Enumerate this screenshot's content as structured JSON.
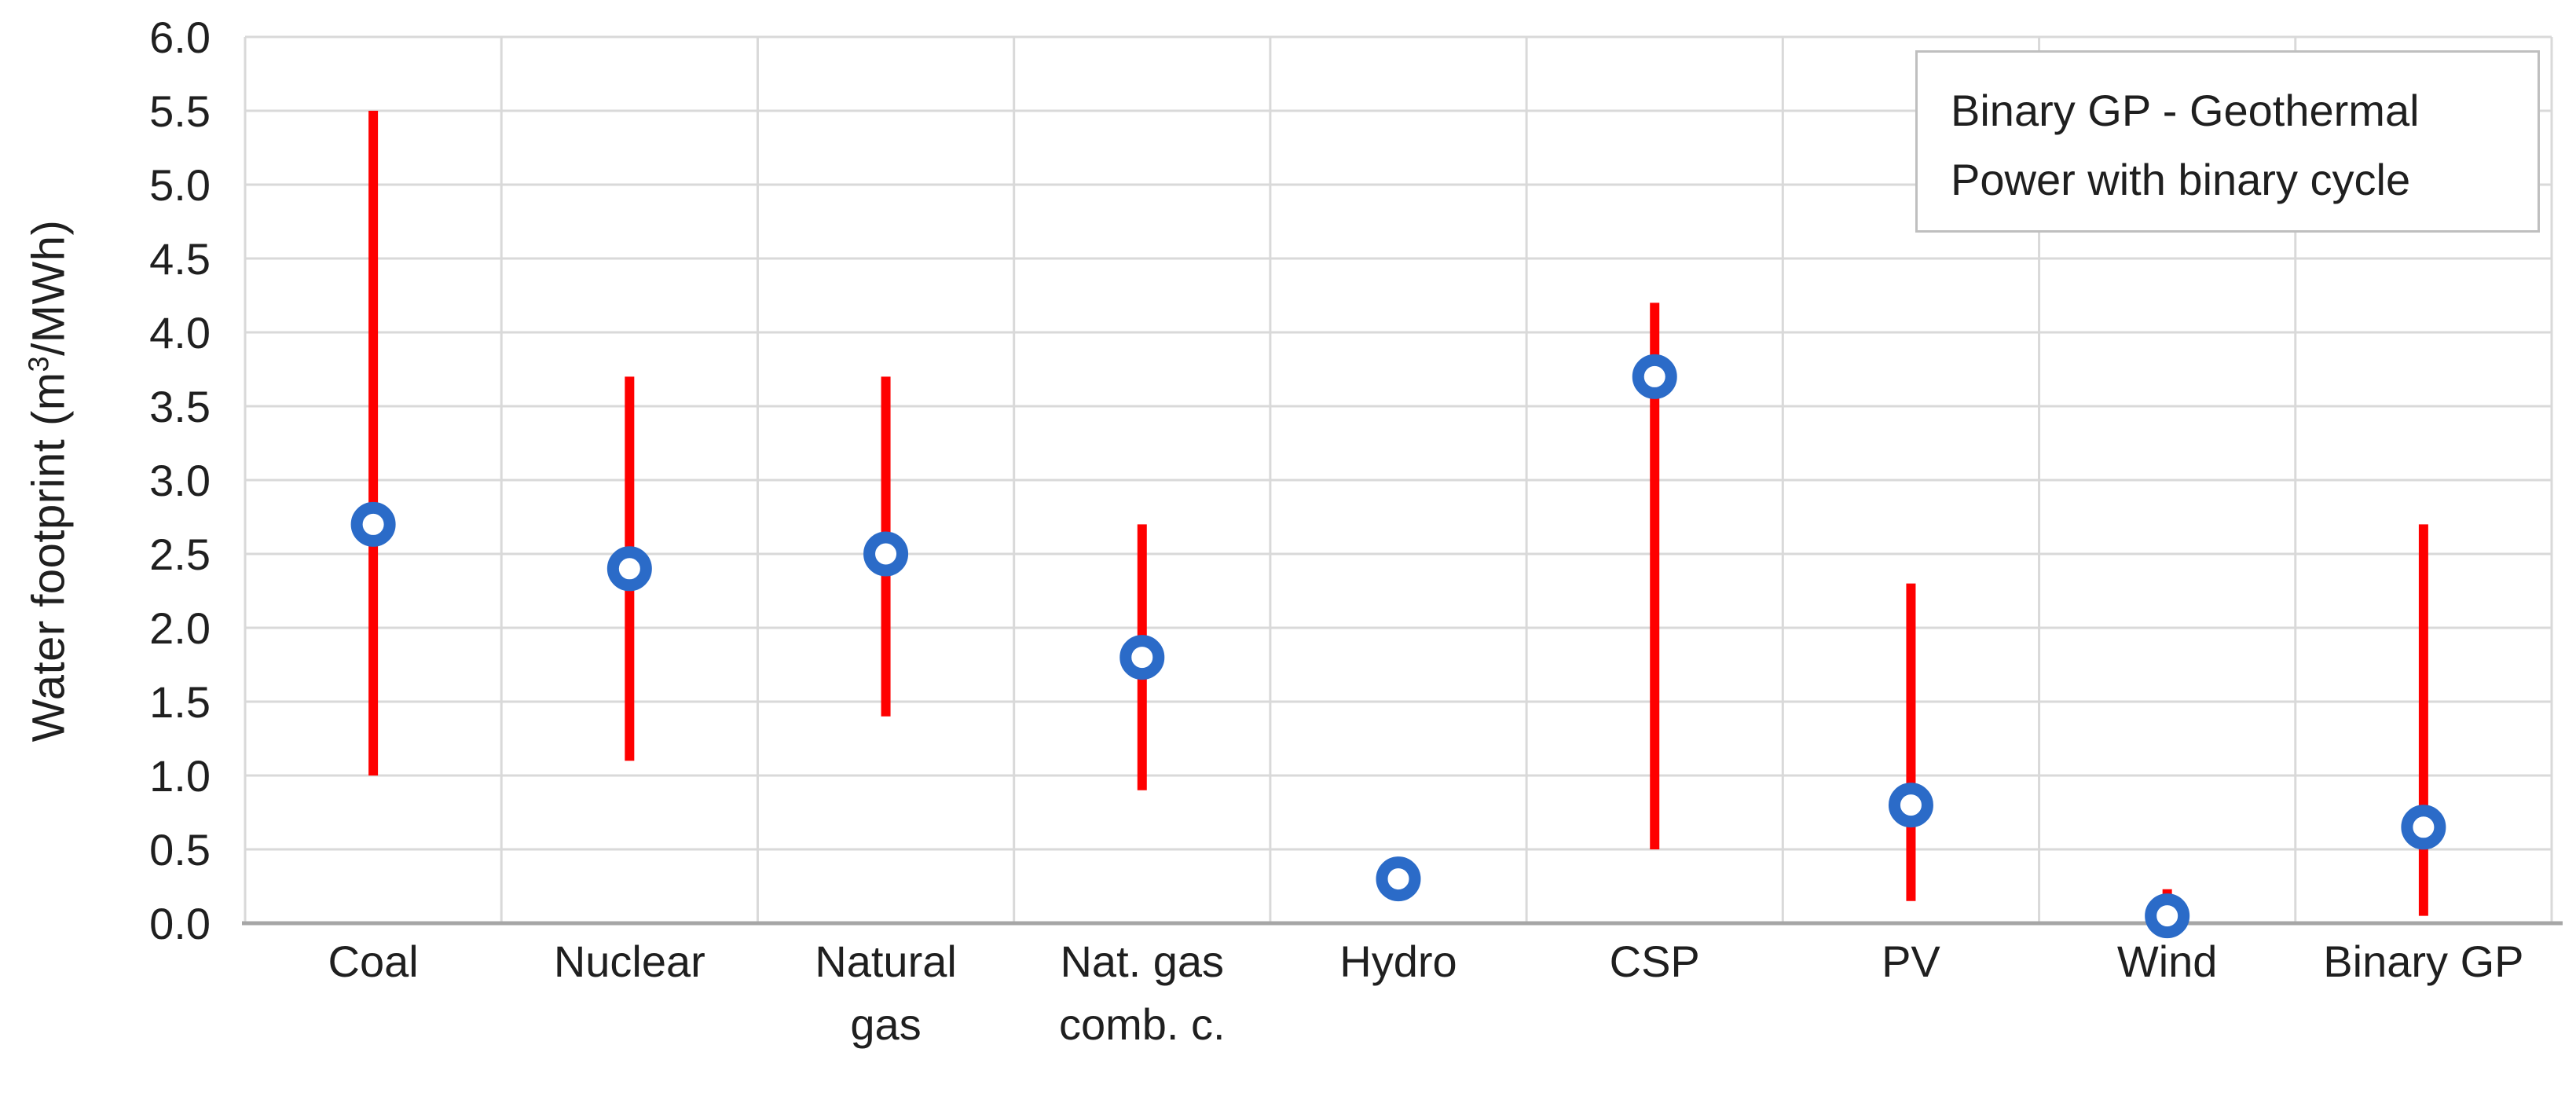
{
  "chart_data": {
    "type": "scatter",
    "title": "",
    "xlabel": "",
    "ylabel_parts": {
      "pre": "Water footprint (m",
      "sup": "3",
      "post": "/MWh)"
    },
    "ylim": [
      0.0,
      6.0
    ],
    "ytick_step": 0.5,
    "yticks": [
      "0.0",
      "0.5",
      "1.0",
      "1.5",
      "2.0",
      "2.5",
      "3.0",
      "3.5",
      "4.0",
      "4.5",
      "5.0",
      "5.5",
      "6.0"
    ],
    "grid": true,
    "legend": {
      "position": "top-right",
      "lines": [
        "Binary GP - Geothermal",
        "Power with binary cycle"
      ]
    },
    "points": [
      {
        "category": [
          "Coal"
        ],
        "value": 2.7,
        "range": [
          1.0,
          5.5
        ]
      },
      {
        "category": [
          "Nuclear"
        ],
        "value": 2.4,
        "range": [
          1.1,
          3.7
        ]
      },
      {
        "category": [
          "Natural",
          "gas"
        ],
        "value": 2.5,
        "range": [
          1.4,
          3.7
        ]
      },
      {
        "category": [
          "Nat. gas",
          "comb. c."
        ],
        "value": 1.8,
        "range": [
          0.9,
          2.7
        ]
      },
      {
        "category": [
          "Hydro"
        ],
        "value": 0.3,
        "range": null
      },
      {
        "category": [
          "CSP"
        ],
        "value": 3.7,
        "range": [
          0.5,
          4.2
        ]
      },
      {
        "category": [
          "PV"
        ],
        "value": 0.8,
        "range": [
          0.15,
          2.3
        ]
      },
      {
        "category": [
          "Wind"
        ],
        "value": 0.05,
        "range": [
          0.0,
          0.23
        ]
      },
      {
        "category": [
          "Binary GP"
        ],
        "value": 0.65,
        "range": [
          0.05,
          2.7
        ]
      }
    ],
    "colors": {
      "range_bar": "#fe0000",
      "marker_ring": "#2b6bc8",
      "marker_fill": "#ffffff",
      "gridline": "#d9d9d9",
      "axis_line": "#a6a6a6",
      "text": "#1f1f1f",
      "legend_border": "#bfbfbf",
      "background": "#ffffff"
    }
  }
}
